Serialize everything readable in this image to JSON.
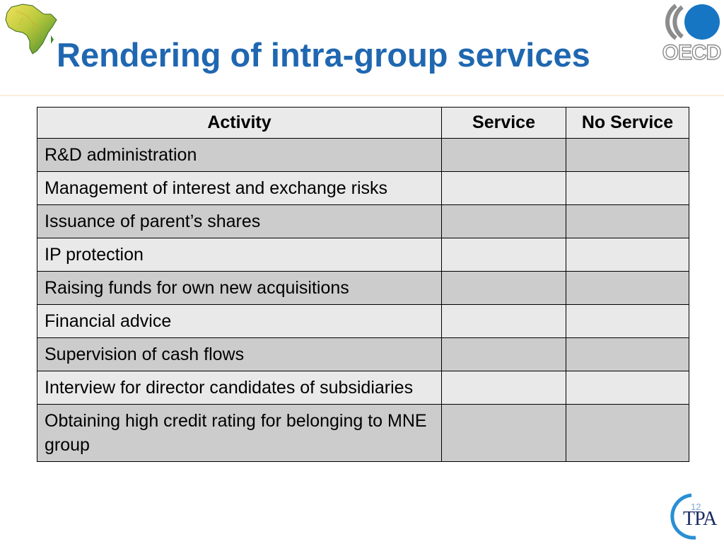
{
  "slide": {
    "title": "Rendering of intra-group services",
    "page_number": "12"
  },
  "logos": {
    "left": "africa-map-logo",
    "right_text": "OECD",
    "bottom_right_text": "TPA"
  },
  "table": {
    "headers": [
      "Activity",
      "Service",
      "No Service"
    ],
    "rows": [
      {
        "activity": "R&D administration",
        "service": "",
        "no_service": ""
      },
      {
        "activity": "Management of interest and exchange risks",
        "service": "",
        "no_service": ""
      },
      {
        "activity": "Issuance of parent’s shares",
        "service": "",
        "no_service": ""
      },
      {
        "activity": "IP protection",
        "service": "",
        "no_service": ""
      },
      {
        "activity": "Raising funds for own new acquisitions",
        "service": "",
        "no_service": ""
      },
      {
        "activity": "Financial advice",
        "service": "",
        "no_service": ""
      },
      {
        "activity": "Supervision of cash flows",
        "service": "",
        "no_service": ""
      },
      {
        "activity": "Interview for director candidates of subsidiaries",
        "service": "",
        "no_service": ""
      },
      {
        "activity": "Obtaining high credit rating for belonging to MNE group",
        "service": "",
        "no_service": ""
      }
    ]
  },
  "colors": {
    "title": "#1f67b1",
    "oecd_blue": "#1776c4",
    "row_dark": "#cccccc",
    "row_light": "#e9e9e9"
  }
}
